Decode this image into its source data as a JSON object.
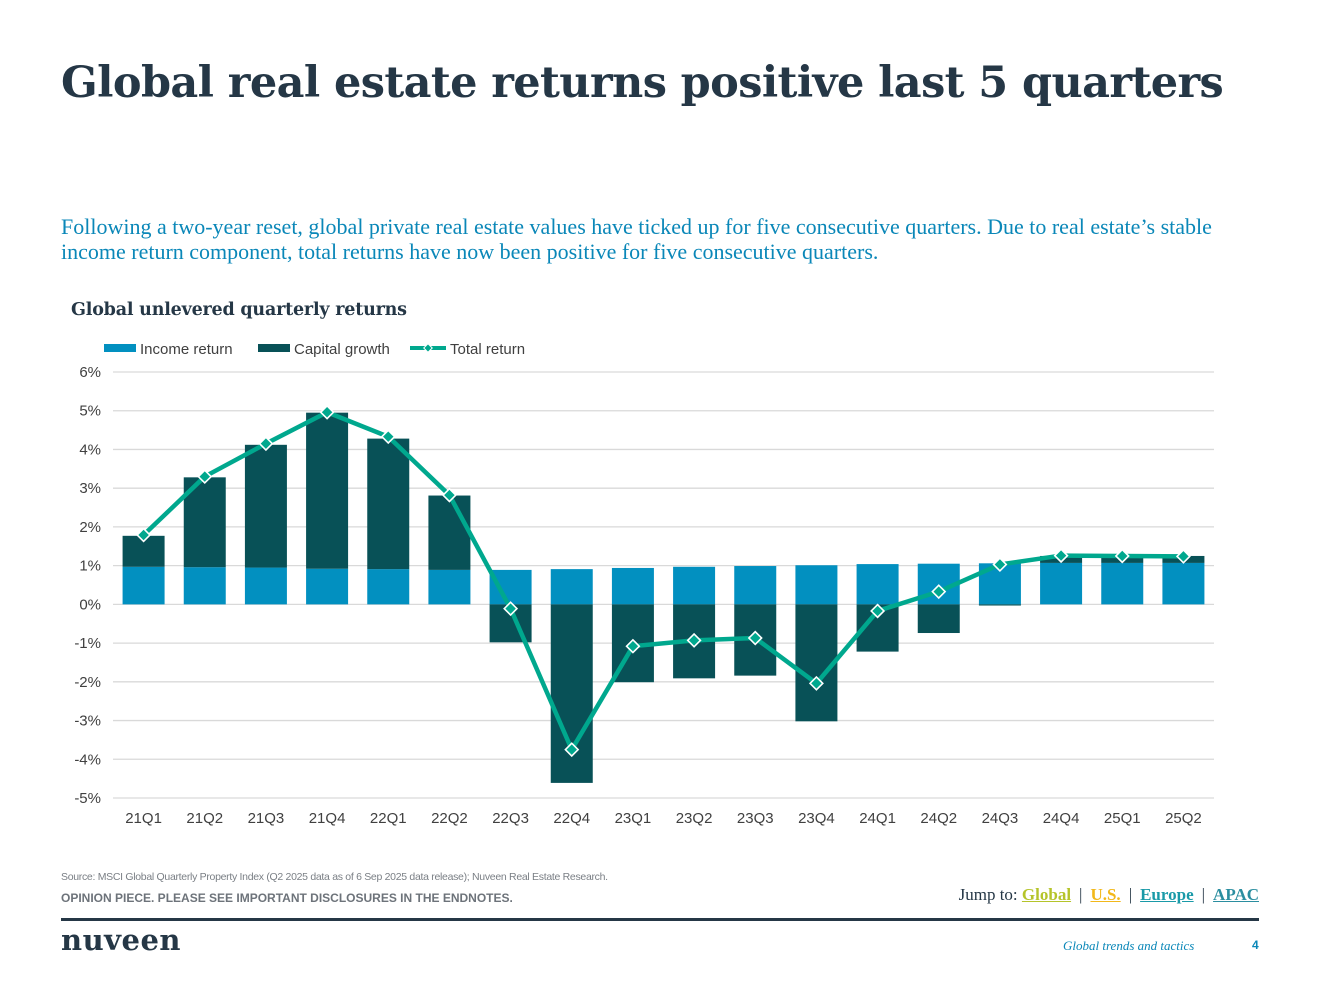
{
  "page": {
    "title": "Global real estate returns positive last 5 quarters",
    "subtitle": "Following a two-year reset, global private real estate values have ticked up for five consecutive quarters. Due to real estate’s stable income return component, total returns have now been positive for five consecutive quarters.",
    "source": "Source: MSCI Global Quarterly Property Index (Q2 2025 data as of 6 Sep 2025 data release); Nuveen Real Estate Research.",
    "disclaimer": "OPINION PIECE. PLEASE SEE IMPORTANT DISCLOSURES IN THE ENDNOTES.",
    "jump_to": {
      "label": "Jump to:",
      "links": [
        {
          "label": "Global",
          "color": "#b5c42a"
        },
        {
          "label": "U.S.",
          "color": "#f2b81a"
        },
        {
          "label": "Europe",
          "color": "#1a9aa8"
        },
        {
          "label": "APAC",
          "color": "#2b8ea0"
        }
      ],
      "separator": "|"
    },
    "logo": "nuveen",
    "footer_label": "Global trends and tactics",
    "page_number": "4"
  },
  "colors": {
    "income": "#0290c0",
    "capital": "#085157",
    "total": "#00a88e",
    "grid": "#d9d9d9",
    "axis_text": "#404040"
  },
  "chart_data": {
    "type": "bar",
    "title": "Global unlevered quarterly returns",
    "xlabel": "",
    "ylabel": "",
    "ylim": [
      -5,
      6
    ],
    "yticks": [
      6,
      5,
      4,
      3,
      2,
      1,
      0,
      -1,
      -2,
      -3,
      -4,
      -5
    ],
    "ytick_labels": [
      "6%",
      "5%",
      "4%",
      "3%",
      "2%",
      "1%",
      "0%",
      "-1%",
      "-2%",
      "-3%",
      "-4%",
      "-5%"
    ],
    "grid": true,
    "legend_position": "top-left",
    "stacked": true,
    "categories": [
      "21Q1",
      "21Q2",
      "21Q3",
      "21Q4",
      "22Q1",
      "22Q2",
      "22Q3",
      "22Q4",
      "23Q1",
      "23Q2",
      "23Q3",
      "23Q4",
      "24Q1",
      "24Q2",
      "24Q3",
      "24Q4",
      "25Q1",
      "25Q2"
    ],
    "series": [
      {
        "name": "Income return",
        "type": "bar",
        "values": [
          0.97,
          0.96,
          0.95,
          0.92,
          0.91,
          0.89,
          0.89,
          0.91,
          0.94,
          0.97,
          0.99,
          1.01,
          1.04,
          1.05,
          1.06,
          1.07,
          1.07,
          1.07
        ]
      },
      {
        "name": "Capital growth",
        "type": "bar",
        "values": [
          0.8,
          2.32,
          3.17,
          4.03,
          3.37,
          1.92,
          -0.98,
          -4.61,
          -2.01,
          -1.91,
          -1.84,
          -3.02,
          -1.22,
          -0.74,
          -0.03,
          0.18,
          0.18,
          0.18
        ]
      },
      {
        "name": "Total return",
        "type": "line",
        "values": [
          1.79,
          3.3,
          4.15,
          4.96,
          4.33,
          2.82,
          -0.11,
          -3.75,
          -1.08,
          -0.93,
          -0.87,
          -2.04,
          -0.17,
          0.33,
          1.03,
          1.26,
          1.25,
          1.24
        ]
      }
    ]
  }
}
